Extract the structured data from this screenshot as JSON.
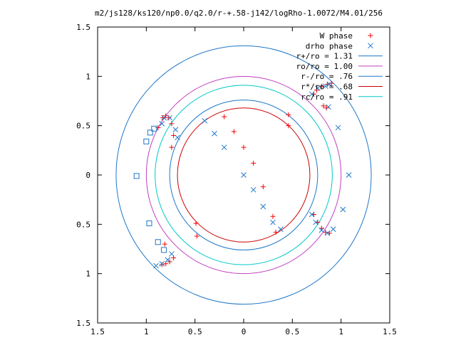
{
  "chart_data": {
    "type": "scatter",
    "title": "m2/js128/ks120/np0.0/q2.0/r-+.58-j142/logRho-1.0072/M4.01/256",
    "xlabel": "",
    "ylabel": "",
    "xlim": [
      -1.5,
      1.5
    ],
    "ylim": [
      -1.5,
      1.5
    ],
    "x_tick_labels": [
      "1.5",
      "1",
      "0.5",
      "0",
      "0.5",
      "1",
      "1.5"
    ],
    "y_tick_labels": [
      "1.5",
      "1",
      "0.5",
      "0",
      "0.5",
      "1",
      "1.5"
    ],
    "ticks": [
      -1.5,
      -1,
      -0.5,
      0,
      0.5,
      1,
      1.5
    ],
    "grid": false,
    "legend_position": "top-right",
    "circles": [
      {
        "name": "r+/ro = 1.31",
        "radius": 1.31,
        "color": "#1f77c8"
      },
      {
        "name": "ro/ro = 1.00",
        "radius": 1.0,
        "color": "#c040c0"
      },
      {
        "name": "r-/ro = .76",
        "radius": 0.76,
        "color": "#1f77c8"
      },
      {
        "name": "r*/ro = .68",
        "radius": 0.68,
        "color": "#cc0000"
      },
      {
        "name": "rc/ro = .91",
        "radius": 0.91,
        "color": "#00c8c8"
      }
    ],
    "series": [
      {
        "name": "W phase",
        "marker": "plus",
        "color": "#ff0000",
        "points": [
          [
            -0.2,
            0.59
          ],
          [
            -0.1,
            0.44
          ],
          [
            0.0,
            0.28
          ],
          [
            0.1,
            0.12
          ],
          [
            0.2,
            -0.12
          ],
          [
            0.3,
            -0.42
          ],
          [
            0.33,
            -0.58
          ],
          [
            -0.88,
            0.48
          ],
          [
            -0.83,
            0.58
          ],
          [
            -0.8,
            0.6
          ],
          [
            -0.77,
            0.58
          ],
          [
            -0.74,
            0.52
          ],
          [
            -0.72,
            0.4
          ],
          [
            -0.74,
            0.28
          ],
          [
            -0.72,
            -0.84
          ],
          [
            -0.76,
            -0.88
          ],
          [
            -0.8,
            -0.9
          ],
          [
            -0.84,
            -0.91
          ],
          [
            -0.81,
            -0.7
          ],
          [
            0.72,
            0.82
          ],
          [
            0.75,
            0.86
          ],
          [
            0.8,
            0.9
          ],
          [
            0.86,
            0.92
          ],
          [
            0.9,
            0.93
          ],
          [
            0.82,
            0.7
          ],
          [
            0.85,
            0.68
          ],
          [
            0.72,
            -0.4
          ],
          [
            0.76,
            -0.48
          ],
          [
            0.8,
            -0.54
          ],
          [
            0.84,
            -0.58
          ],
          [
            0.88,
            -0.59
          ],
          [
            0.46,
            0.61
          ],
          [
            0.46,
            0.5
          ],
          [
            -0.49,
            -0.49
          ],
          [
            -0.48,
            -0.62
          ]
        ]
      },
      {
        "name": "drho phase",
        "marker": "cross",
        "color": "#1f77c8",
        "points": [
          [
            -0.4,
            0.55
          ],
          [
            -0.3,
            0.42
          ],
          [
            -0.2,
            0.28
          ],
          [
            0.0,
            0.0
          ],
          [
            0.1,
            -0.15
          ],
          [
            0.2,
            -0.32
          ],
          [
            0.3,
            -0.48
          ],
          [
            0.38,
            -0.55
          ],
          [
            -0.84,
            0.52
          ],
          [
            -0.82,
            0.58
          ],
          [
            -0.76,
            0.58
          ],
          [
            -0.7,
            0.46
          ],
          [
            -0.68,
            0.38
          ],
          [
            -0.9,
            -0.92
          ],
          [
            -0.84,
            -0.9
          ],
          [
            -0.78,
            -0.86
          ],
          [
            -0.74,
            -0.8
          ],
          [
            0.7,
            0.82
          ],
          [
            0.76,
            0.88
          ],
          [
            0.84,
            0.9
          ],
          [
            0.88,
            0.92
          ],
          [
            0.7,
            -0.4
          ],
          [
            0.74,
            -0.48
          ],
          [
            0.8,
            -0.56
          ],
          [
            0.86,
            -0.59
          ],
          [
            0.92,
            -0.55
          ],
          [
            0.97,
            0.48
          ],
          [
            1.08,
            0.0
          ],
          [
            1.02,
            -0.35
          ],
          [
            0.87,
            0.69
          ]
        ]
      },
      {
        "name": "",
        "marker": "square",
        "color": "#1f77c8",
        "points": [
          [
            -1.1,
            -0.01
          ],
          [
            -0.97,
            -0.49
          ],
          [
            -1.0,
            0.34
          ],
          [
            -0.96,
            0.43
          ],
          [
            -0.88,
            -0.68
          ],
          [
            -0.82,
            -0.76
          ],
          [
            -0.92,
            0.47
          ]
        ]
      }
    ]
  }
}
